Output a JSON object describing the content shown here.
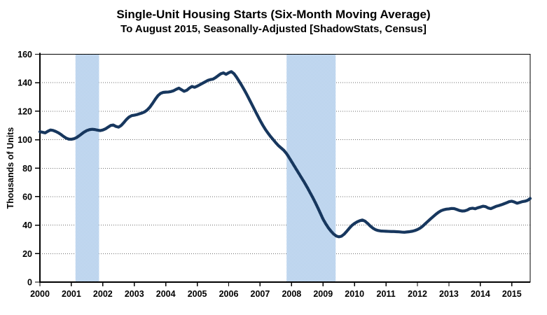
{
  "chart_data": {
    "type": "line",
    "title": "Single-Unit Housing Starts (Six-Month Moving Average)",
    "subtitle": "To August 2015, Seasonally-Adjusted [ShadowStats, Census]",
    "ylabel": "Thousands of Units",
    "ylim": [
      0,
      160
    ],
    "ytick_step": 20,
    "ytick_labels": [
      "0",
      "20",
      "40",
      "60",
      "80",
      "100",
      "120",
      "140",
      "160"
    ],
    "xlim": [
      2000,
      2015.5833
    ],
    "xticks": [
      2000,
      2001,
      2002,
      2003,
      2004,
      2005,
      2006,
      2007,
      2008,
      2009,
      2010,
      2011,
      2012,
      2013,
      2014,
      2015
    ],
    "xtick_labels": [
      "2000",
      "2001",
      "2002",
      "2003",
      "2004",
      "2005",
      "2006",
      "2007",
      "2008",
      "2009",
      "2010",
      "2011",
      "2012",
      "2013",
      "2014",
      "2015"
    ],
    "grid": "horizontal-dotted",
    "legend": "none",
    "frequency": "monthly",
    "start": {
      "year": 2000,
      "month": 1
    },
    "end": {
      "year": 2015,
      "month": 8
    },
    "series": [
      {
        "name": "Single-unit housing starts, six-month moving average",
        "color": "#17375E",
        "values": [
          105.6,
          105.2,
          104.8,
          105.9,
          106.8,
          106.5,
          105.8,
          104.9,
          103.7,
          102.3,
          101.1,
          100.4,
          100.3,
          100.7,
          101.5,
          102.8,
          104.2,
          105.5,
          106.5,
          107.1,
          107.3,
          107.1,
          106.7,
          106.4,
          106.8,
          107.6,
          108.8,
          110.0,
          110.3,
          109.3,
          108.8,
          110.0,
          112.0,
          114.2,
          115.9,
          116.9,
          117.2,
          117.6,
          118.2,
          118.8,
          119.6,
          121.0,
          123.0,
          125.6,
          128.4,
          130.9,
          132.5,
          133.2,
          133.4,
          133.5,
          133.8,
          134.4,
          135.4,
          136.2,
          135.1,
          134.0,
          134.7,
          136.2,
          137.4,
          136.8,
          137.6,
          138.6,
          139.6,
          140.6,
          141.6,
          142.2,
          142.5,
          143.6,
          145.0,
          146.3,
          146.9,
          145.9,
          147.0,
          147.8,
          146.4,
          143.9,
          141.0,
          138.0,
          134.8,
          131.4,
          127.8,
          124.2,
          120.6,
          117.0,
          113.5,
          110.2,
          107.2,
          104.6,
          102.2,
          100.0,
          97.8,
          95.8,
          94.2,
          92.6,
          90.4,
          87.6,
          84.6,
          81.6,
          78.6,
          75.6,
          72.6,
          69.6,
          66.4,
          63.0,
          59.6,
          56.0,
          52.2,
          48.2,
          44.2,
          41.0,
          38.2,
          35.8,
          33.8,
          32.4,
          31.8,
          32.2,
          33.6,
          35.6,
          37.8,
          39.8,
          41.2,
          42.3,
          43.1,
          43.6,
          42.8,
          41.2,
          39.4,
          37.9,
          36.8,
          36.2,
          35.9,
          35.8,
          35.7,
          35.6,
          35.5,
          35.5,
          35.4,
          35.3,
          35.1,
          35.0,
          35.2,
          35.4,
          35.7,
          36.2,
          36.9,
          37.9,
          39.3,
          41.0,
          42.7,
          44.4,
          46.0,
          47.6,
          49.0,
          50.1,
          50.8,
          51.2,
          51.4,
          51.7,
          51.6,
          51.0,
          50.3,
          49.9,
          50.0,
          50.6,
          51.6,
          51.9,
          51.5,
          52.2,
          52.7,
          53.3,
          53.0,
          52.0,
          51.6,
          52.4,
          53.2,
          53.7,
          54.3,
          55.0,
          55.7,
          56.5,
          56.8,
          56.2,
          55.4,
          55.9,
          56.5,
          56.8,
          57.4,
          58.7
        ]
      }
    ],
    "recession_bands": [
      {
        "from": 2001.13,
        "to": 2001.88
      },
      {
        "from": 2007.84,
        "to": 2009.4
      }
    ],
    "colors": {
      "line": "#17375E",
      "band_dark": "#9fc2e6",
      "band_light": "#dfeaf7",
      "gridline": "#6e6e6e",
      "axis": "#000000",
      "background": "#ffffff"
    }
  }
}
